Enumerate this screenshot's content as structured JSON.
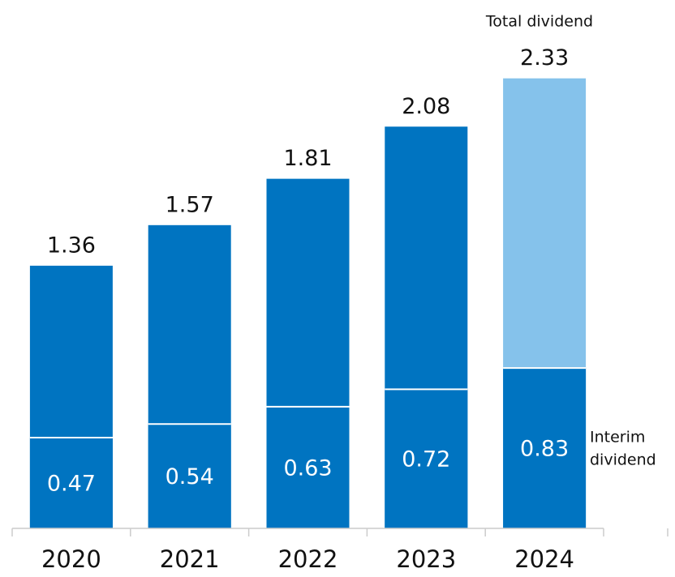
{
  "chart_data": {
    "type": "bar",
    "categories": [
      "2020",
      "2021",
      "2022",
      "2023",
      "2024"
    ],
    "series": [
      {
        "name": "Interim dividend",
        "color": "#0074c1",
        "values": [
          0.47,
          0.54,
          0.63,
          0.72,
          0.83
        ]
      }
    ],
    "totals": [
      1.36,
      1.57,
      1.81,
      2.08,
      2.33
    ],
    "total_colors": [
      "#0074c1",
      "#0074c1",
      "#0074c1",
      "#0074c1",
      "#85c2eb"
    ],
    "total_annotation": "Total dividend",
    "interim_annotation": [
      "Interim",
      "dividend"
    ],
    "ylim": [
      0,
      2.4
    ]
  }
}
